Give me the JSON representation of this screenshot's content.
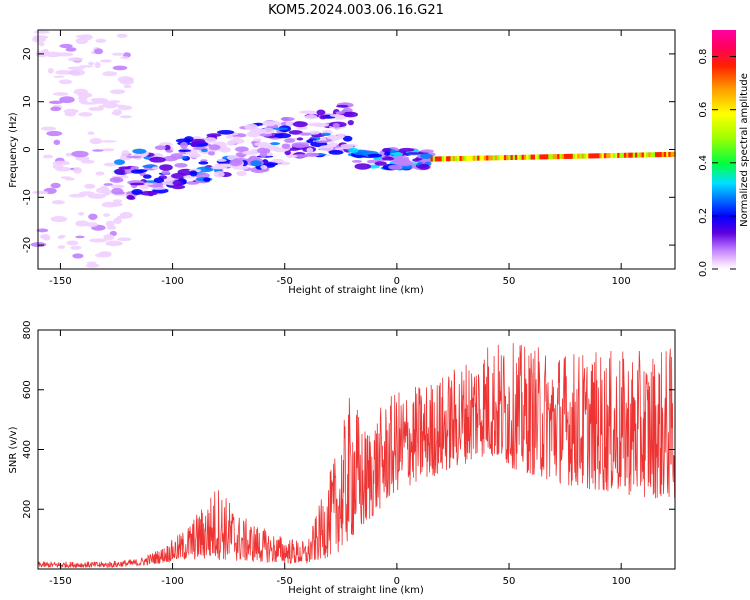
{
  "title": "KOM5.2024.003.06.16.G21",
  "chart_data": [
    {
      "type": "heatmap",
      "xlabel": "Height of straight line (km)",
      "ylabel": "Frequency (Hz)",
      "xlim": [
        -160,
        124
      ],
      "ylim": [
        -25,
        25
      ],
      "xticks": [
        -150,
        -100,
        -50,
        0,
        50,
        100
      ],
      "yticks": [
        -20,
        -10,
        0,
        10,
        20
      ],
      "colorbar": {
        "label": "Normalized spectral amplitude",
        "range": [
          0.0,
          0.9
        ],
        "ticks": [
          0.0,
          0.2,
          0.4,
          0.6,
          0.8
        ],
        "colormap": "rainbow-white-to-magenta"
      },
      "features": [
        {
          "name": "scattered noise",
          "x_range": [
            -160,
            -120
          ],
          "freq_range": [
            -25,
            25
          ],
          "amplitude": 0.05
        },
        {
          "name": "rising signal band",
          "x_range": [
            -125,
            -20
          ],
          "freq_start": -6,
          "freq_end": 5,
          "amplitude_range": [
            0.05,
            0.3
          ]
        },
        {
          "name": "transition",
          "x_range": [
            -20,
            15
          ],
          "freq_range": [
            -4,
            0
          ],
          "amplitude_range": [
            0.1,
            0.4
          ]
        },
        {
          "name": "stable line",
          "x_range": [
            15,
            124
          ],
          "freq_start": -2,
          "freq_end": -1,
          "amplitude_range": [
            0.5,
            0.9
          ]
        }
      ]
    },
    {
      "type": "line",
      "xlabel": "Height of straight line (km)",
      "ylabel": "SNR (v/v)",
      "xlim": [
        -160,
        124
      ],
      "ylim": [
        0,
        800
      ],
      "xticks": [
        -150,
        -100,
        -50,
        0,
        50,
        100
      ],
      "yticks": [
        200,
        400,
        600,
        800
      ],
      "color": "#ee3333",
      "envelope": {
        "x": [
          -160,
          -130,
          -115,
          -105,
          -95,
          -85,
          -80,
          -70,
          -55,
          -40,
          -30,
          -25,
          -20,
          -15,
          -10,
          -5,
          0,
          10,
          20,
          30,
          40,
          50,
          70,
          90,
          110,
          124
        ],
        "low": [
          5,
          5,
          10,
          20,
          30,
          30,
          30,
          25,
          20,
          15,
          40,
          60,
          100,
          130,
          180,
          220,
          260,
          290,
          320,
          350,
          380,
          340,
          290,
          260,
          240,
          230
        ],
        "high": [
          25,
          25,
          35,
          70,
          130,
          230,
          290,
          180,
          120,
          90,
          320,
          450,
          620,
          470,
          520,
          560,
          600,
          620,
          650,
          700,
          770,
          760,
          740,
          730,
          730,
          750
        ]
      }
    }
  ]
}
